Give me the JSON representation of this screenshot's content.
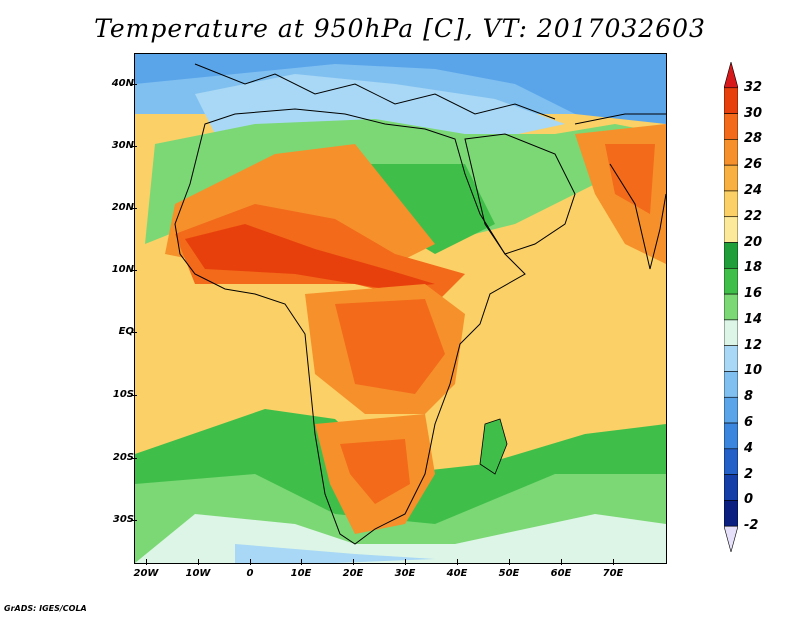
{
  "title": "Temperature at 950hPa [C], VT: 2017032603",
  "credit": "GrADS: IGES/COLA",
  "lat_labels": [
    "40N",
    "30N",
    "20N",
    "10N",
    "EQ",
    "10S",
    "20S",
    "30S"
  ],
  "lon_labels": [
    "20W",
    "10W",
    "0",
    "10E",
    "20E",
    "30E",
    "40E",
    "50E",
    "60E",
    "70E"
  ],
  "colorbar": {
    "labels": [
      "32",
      "30",
      "28",
      "26",
      "24",
      "22",
      "20",
      "18",
      "16",
      "14",
      "12",
      "10",
      "8",
      "6",
      "4",
      "2",
      "0",
      "-2"
    ],
    "colors": [
      "#d7191c",
      "#e8400c",
      "#f26a1a",
      "#f6902b",
      "#f8b040",
      "#fbd066",
      "#fde99a",
      "#1f9e3a",
      "#3fbf4a",
      "#7bd875",
      "#dcf5e6",
      "#a8d8f5",
      "#80c0f0",
      "#5aa5ea",
      "#3a85de",
      "#2360c8",
      "#143fa8",
      "#0a1f80",
      "#e6e0fa"
    ]
  },
  "map": {
    "palette": {
      "ocean_cold": "#5aa5ea",
      "ocean_cool": "#a8d8f5",
      "ocean_mild": "#dcf5e6",
      "land_green": "#3fbf4a",
      "land_lightgreen": "#7bd875",
      "warm_yellow": "#fde99a",
      "warm_light": "#fbd066",
      "warm_orange": "#f6902b",
      "hot_orange": "#f26a1a",
      "hot_red": "#e8400c"
    }
  }
}
